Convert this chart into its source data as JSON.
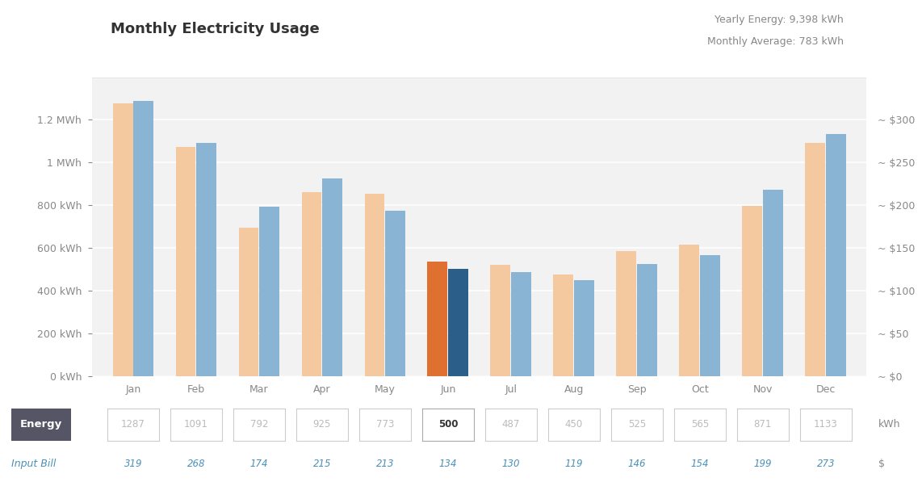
{
  "title": "Monthly Electricity Usage",
  "yearly_energy": "Yearly Energy: 9,398 kWh",
  "monthly_avg": "Monthly Average: 783 kWh",
  "months": [
    "Jan",
    "Feb",
    "Mar",
    "Apr",
    "May",
    "Jun",
    "Jul",
    "Aug",
    "Sep",
    "Oct",
    "Nov",
    "Dec"
  ],
  "energy_kwh": [
    1287,
    1091,
    792,
    925,
    773,
    500,
    487,
    450,
    525,
    565,
    871,
    1133
  ],
  "bill_dollars": [
    319,
    268,
    174,
    215,
    213,
    134,
    130,
    119,
    146,
    154,
    199,
    273
  ],
  "highlighted_month_idx": 5,
  "bar_color_energy_normal": "#8ab4d4",
  "bar_color_energy_highlight": "#2b5f8a",
  "bar_color_bill_normal": "#f5c9a0",
  "bar_color_bill_highlight": "#e07030",
  "bg_color": "#ffffff",
  "plot_bg_color": "#f2f2f2",
  "axis_color": "#bbbbbb",
  "text_color": "#888888",
  "title_color": "#333333",
  "stats_color": "#888888",
  "input_bill_label_color": "#4a90b8",
  "energy_button_bg": "#555566",
  "energy_button_text": "#ffffff",
  "input_box_bg": "#ffffff",
  "input_box_border": "#cccccc",
  "input_box_text": "#bbbbbb",
  "highlight_box_text": "#333333",
  "ylim_kwh": [
    0,
    1400
  ],
  "y_ticks_kwh": [
    0,
    200,
    400,
    600,
    800,
    1000,
    1200
  ],
  "y_tick_labels_kwh": [
    "0 kWh",
    "200 kWh",
    "400 kWh",
    "600 kWh",
    "800 kWh",
    "1 MWh",
    "1.2 MWh"
  ],
  "ylim_dollar": [
    0,
    350
  ],
  "y_ticks_dollar": [
    0,
    50,
    100,
    150,
    200,
    250,
    300
  ],
  "y_tick_labels_dollar": [
    "~ $0",
    "~ $50",
    "~ $100",
    "~ $150",
    "~ $200",
    "~ $250",
    "~ $300"
  ]
}
